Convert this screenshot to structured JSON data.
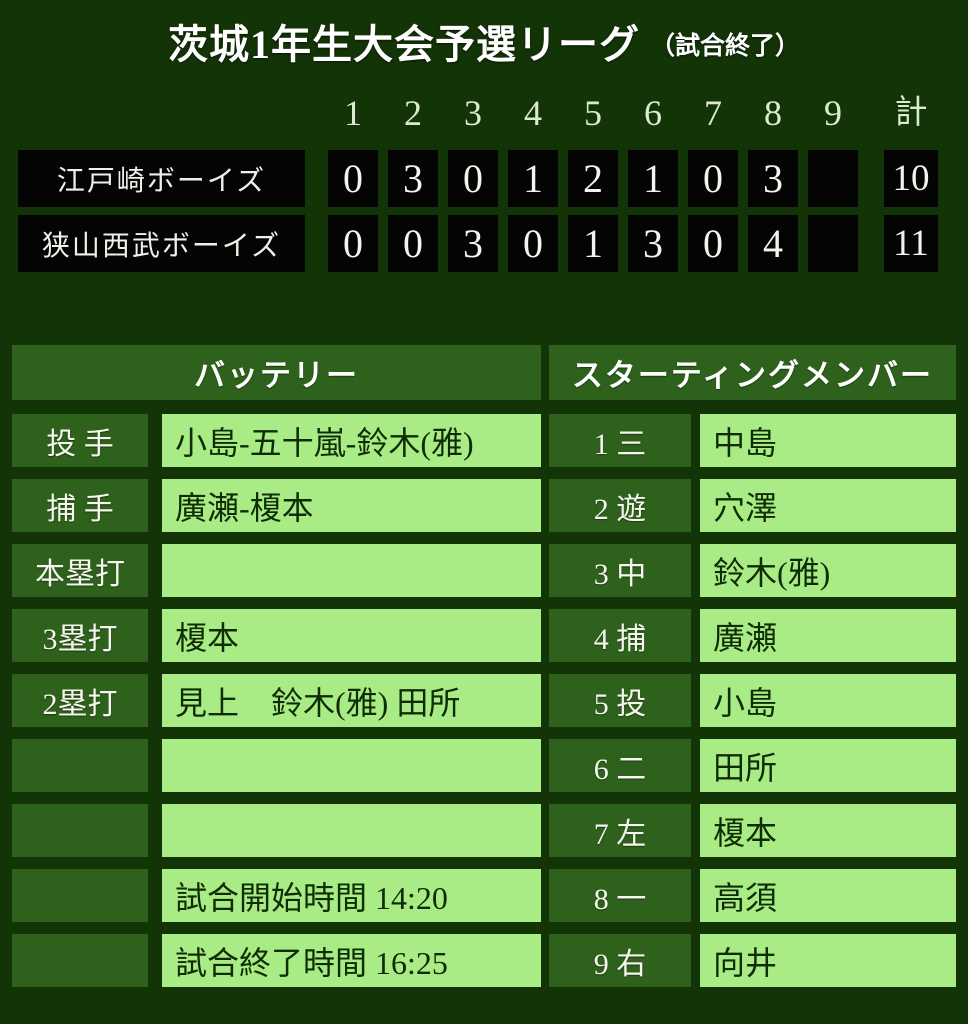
{
  "title": {
    "main": "茨城1年生大会予選リーグ",
    "status": "（試合終了）"
  },
  "scoreboard": {
    "columns": [
      "1",
      "2",
      "3",
      "4",
      "5",
      "6",
      "7",
      "8",
      "9",
      "計"
    ],
    "teams": [
      {
        "name": "江戸崎ボーイズ",
        "innings": [
          "0",
          "3",
          "0",
          "1",
          "2",
          "1",
          "0",
          "3",
          ""
        ],
        "total": "10"
      },
      {
        "name": "狭山西武ボーイズ",
        "innings": [
          "0",
          "0",
          "3",
          "0",
          "1",
          "3",
          "0",
          "4",
          ""
        ],
        "total": "11"
      }
    ]
  },
  "battery": {
    "header": "バッテリー",
    "rows": [
      {
        "label": "投 手",
        "value": "小島-五十嵐-鈴木(雅)"
      },
      {
        "label": "捕 手",
        "value": "廣瀬-榎本"
      },
      {
        "label": "本塁打",
        "value": ""
      },
      {
        "label": "3塁打",
        "value": "榎本"
      },
      {
        "label": "2塁打",
        "value": "見上　鈴木(雅) 田所"
      },
      {
        "label": "",
        "value": ""
      },
      {
        "label": "",
        "value": ""
      },
      {
        "label": "",
        "value": "試合開始時間 14:20"
      },
      {
        "label": "",
        "value": "試合終了時間 16:25"
      }
    ]
  },
  "lineup": {
    "header": "スターティングメンバー",
    "rows": [
      {
        "label": "1 三",
        "value": "中島"
      },
      {
        "label": "2 遊",
        "value": "穴澤"
      },
      {
        "label": "3 中",
        "value": "鈴木(雅)"
      },
      {
        "label": "4 捕",
        "value": "廣瀬"
      },
      {
        "label": "5 投",
        "value": "小島"
      },
      {
        "label": "6 二",
        "value": "田所"
      },
      {
        "label": "7 左",
        "value": "榎本"
      },
      {
        "label": "8 一",
        "value": "高須"
      },
      {
        "label": "9 右",
        "value": "向井"
      }
    ]
  },
  "colors": {
    "page_background": "#133407",
    "panel_green": "#2d611c",
    "cell_light_green": "#a9ec85",
    "scoreboard_black": "#040404",
    "title_text": "#ffffff",
    "value_text": "#0e2d05",
    "inning_header_text": "#dcead2"
  }
}
